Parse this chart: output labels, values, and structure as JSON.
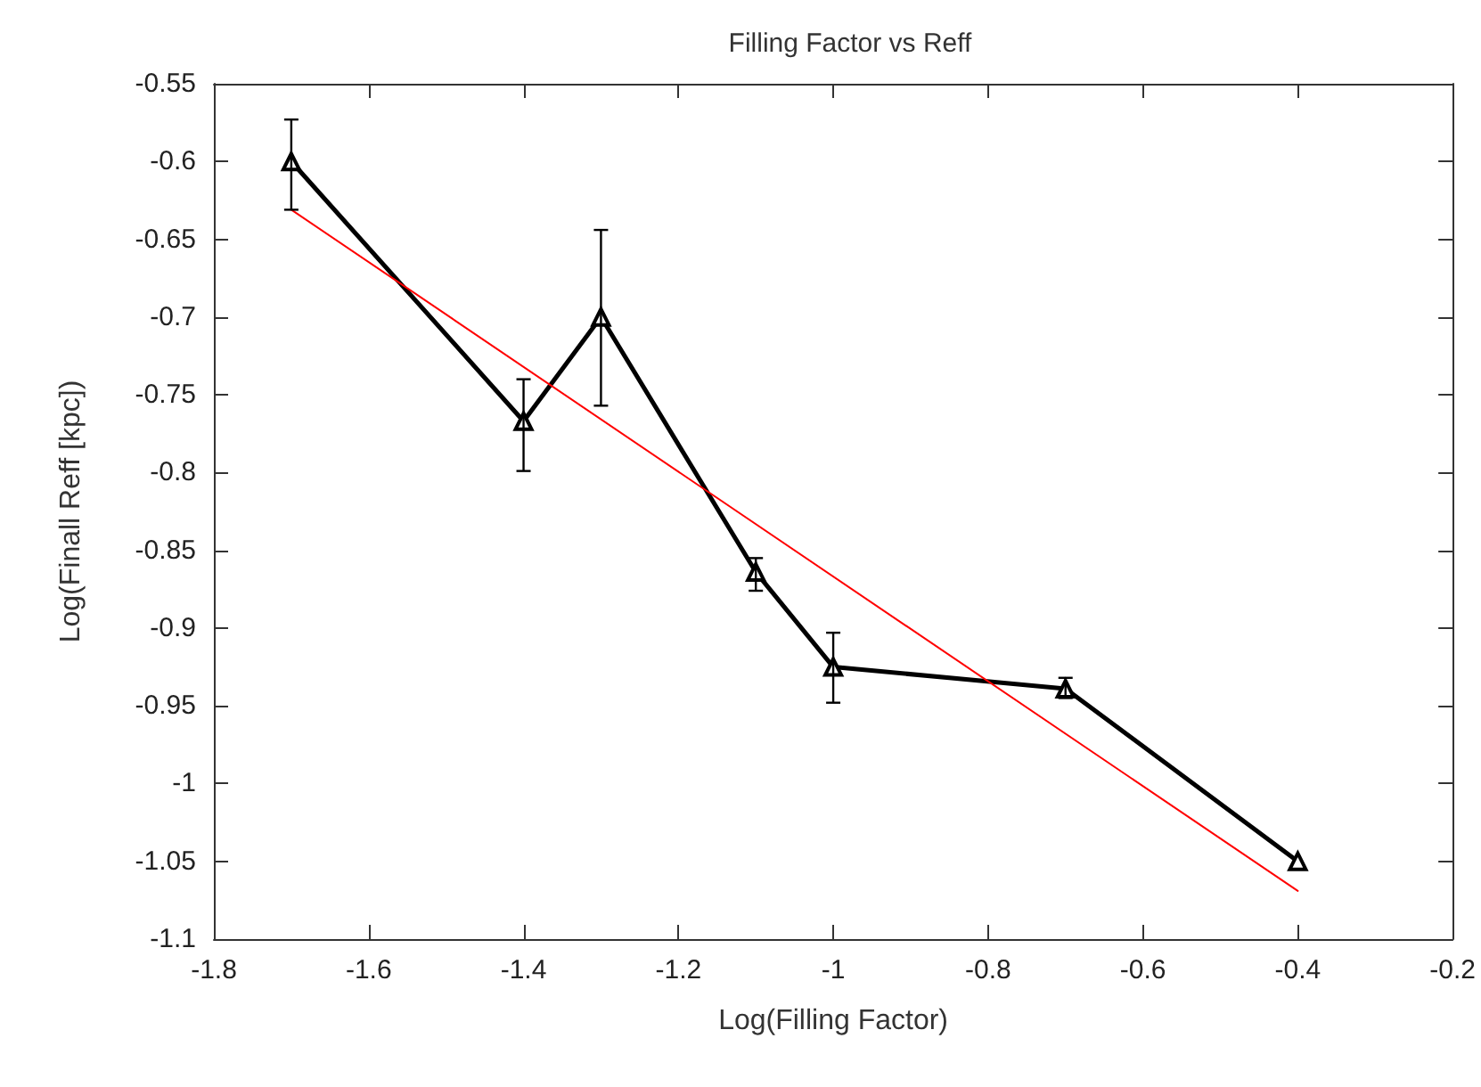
{
  "chart_data": {
    "type": "line",
    "title": "Filling Factor vs Reff",
    "xlabel": "Log(Filling Factor)",
    "ylabel": "Log(Finall Reff [kpc])",
    "xlim": [
      -1.8,
      -0.2
    ],
    "xticks": [
      -1.8,
      -1.6,
      -1.4,
      -1.2,
      -1,
      -0.8,
      -0.6,
      -0.4,
      -0.2
    ],
    "ylim": [
      -1.1,
      -0.55
    ],
    "yticks": [
      -1.1,
      -1.05,
      -1,
      -0.95,
      -0.9,
      -0.85,
      -0.8,
      -0.75,
      -0.7,
      -0.65,
      -0.6,
      -0.55
    ],
    "grid": false,
    "marker": "triangle",
    "line_style": "solid",
    "series": [
      {
        "color": "#000000",
        "x": [
          -1.7,
          -1.4,
          -1.3,
          -1.1,
          -1,
          -0.7,
          -0.4
        ],
        "values": [
          -0.6,
          -0.767,
          -0.7,
          -0.864,
          -0.925,
          -0.939,
          -1.05
        ],
        "errors": [
          [
            -0.631,
            -0.573
          ],
          [
            -0.799,
            -0.74
          ],
          [
            -0.757,
            -0.644
          ],
          [
            -0.876,
            -0.855
          ],
          [
            -0.948,
            -0.903
          ],
          [
            -0.945,
            -0.932
          ],
          null
        ]
      },
      {
        "type": "line",
        "color": "#ff0000",
        "marker": "none",
        "x": [
          -1.7,
          -0.4
        ],
        "values": [
          -0.631,
          -1.069
        ]
      }
    ]
  }
}
